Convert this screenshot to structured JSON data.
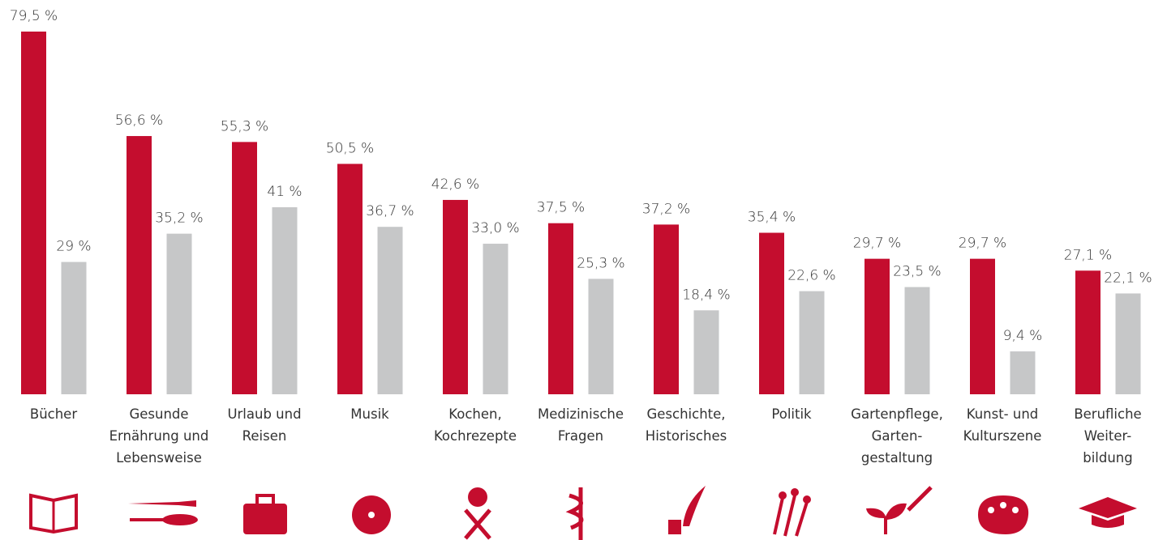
{
  "chart_data": {
    "type": "bar",
    "categories": [
      "Bücher",
      "Gesunde\nErnährung und\nLebensweise",
      "Urlaub und\nReisen",
      "Musik",
      "Kochen,\nKochrezepte",
      "Medizinische\nFragen",
      "Geschichte,\nHistorisches",
      "Politik",
      "Gartenpflege,\nGarten-\ngestaltung",
      "Kunst- und\nKulturszene",
      "Berufliche\nWeiter-\nbildung"
    ],
    "series": [
      {
        "color": "#c40d2e",
        "values": [
          79.5,
          56.6,
          55.3,
          50.5,
          42.6,
          37.5,
          37.2,
          35.4,
          29.7,
          29.7,
          27.1
        ],
        "value_labels": [
          "79,5 %",
          "56,6 %",
          "55,3 %",
          "50,5 %",
          "42,6 %",
          "37,5 %",
          "37,2 %",
          "35,4 %",
          "29,7 %",
          "29,7 %",
          "27,1 %"
        ]
      },
      {
        "color": "#c6c7c8",
        "values": [
          29,
          35.2,
          41,
          36.7,
          33.0,
          25.3,
          18.4,
          22.6,
          23.5,
          9.4,
          22.1
        ],
        "value_labels": [
          "29 %",
          "35,2 %",
          "41 %",
          "36,7 %",
          "33,0 %",
          "25,3 %",
          "18,4 %",
          "22,6 %",
          "23,5 %",
          "9,4 %",
          "22,1 %"
        ]
      }
    ]
  }
}
